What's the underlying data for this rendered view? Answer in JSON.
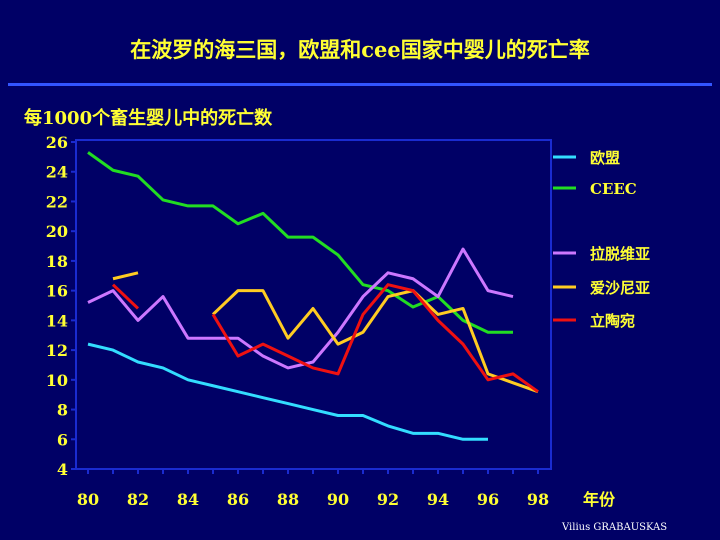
{
  "chart_data": {
    "type": "line",
    "title": "在波罗的海三国，欧盟和cee国家中婴儿的死亡率",
    "ylabel": "每1000个畜生婴儿中的死亡数",
    "xlabel": "年份",
    "xlim": [
      80,
      98
    ],
    "ylim": [
      4,
      26
    ],
    "x_ticks": [
      "80",
      "82",
      "84",
      "86",
      "88",
      "90",
      "92",
      "94",
      "96",
      "98"
    ],
    "y_ticks": [
      "4",
      "6",
      "8",
      "10",
      "12",
      "14",
      "16",
      "18",
      "20",
      "22",
      "24",
      "26"
    ],
    "x": [
      80,
      81,
      82,
      83,
      84,
      85,
      86,
      87,
      88,
      89,
      90,
      91,
      92,
      93,
      94,
      95,
      96,
      97,
      98
    ],
    "legend_position": "right",
    "series": [
      {
        "name": "欧盟",
        "color": "#33ddff",
        "values": [
          12.4,
          12.0,
          11.2,
          10.8,
          10.0,
          9.6,
          9.2,
          8.8,
          8.4,
          8.0,
          7.6,
          7.6,
          6.9,
          6.4,
          6.4,
          6.0,
          6.0,
          null,
          null
        ]
      },
      {
        "name": "CEEC",
        "color": "#22dd22",
        "values": [
          25.3,
          24.1,
          23.7,
          22.1,
          21.7,
          21.7,
          20.5,
          21.2,
          19.6,
          19.6,
          18.4,
          16.4,
          16.0,
          14.9,
          15.6,
          14.0,
          13.2,
          13.2,
          null
        ]
      },
      {
        "name": "拉脱维亚",
        "color": "#cc77ff",
        "values": [
          15.2,
          16.0,
          14.0,
          15.6,
          12.8,
          12.8,
          12.8,
          11.6,
          10.8,
          11.2,
          13.2,
          15.6,
          17.2,
          16.8,
          15.6,
          18.8,
          16.0,
          15.6,
          null
        ]
      },
      {
        "name": "爱沙尼亚",
        "color": "#ffcc22",
        "values": [
          null,
          16.8,
          17.2,
          null,
          null,
          14.4,
          16.0,
          16.0,
          12.8,
          14.8,
          12.4,
          13.2,
          15.6,
          16.0,
          14.4,
          14.8,
          10.4,
          9.8,
          9.2
        ]
      },
      {
        "name": "立陶宛",
        "color": "#ee1111",
        "values": [
          null,
          16.4,
          14.8,
          null,
          null,
          14.4,
          11.6,
          12.4,
          11.6,
          10.8,
          10.4,
          14.4,
          16.4,
          16.0,
          14.0,
          12.4,
          10.0,
          10.4,
          9.2
        ]
      }
    ]
  },
  "credit": "Vilius GRABAUSKAS"
}
